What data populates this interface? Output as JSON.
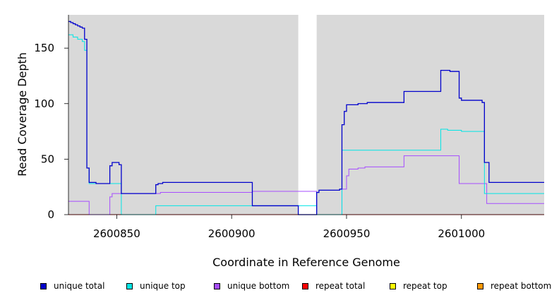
{
  "chart_data": {
    "type": "line",
    "xlabel": "Coordinate in Reference Genome",
    "ylabel": "Read Coverage Depth",
    "xlim": [
      2600829,
      2601036
    ],
    "ylim": [
      0,
      180
    ],
    "x_ticks": [
      2600850,
      2600900,
      2600950,
      2601000
    ],
    "y_ticks": [
      0,
      50,
      100,
      150
    ],
    "background_color": "#d9d9d9",
    "gap_region": [
      2600929,
      2600937
    ],
    "legend_position": "bottom",
    "series": [
      {
        "name": "unique total",
        "color": "#0000cc",
        "x": [
          2600829,
          2600830,
          2600831,
          2600832,
          2600833,
          2600834,
          2600835,
          2600836,
          2600837,
          2600838,
          2600839,
          2600841,
          2600847,
          2600848,
          2600851,
          2600852,
          2600867,
          2600868,
          2600870,
          2600909,
          2600929,
          2600937,
          2600938,
          2600947,
          2600948,
          2600949,
          2600950,
          2600955,
          2600959,
          2600975,
          2600991,
          2600995,
          2600999,
          2601000,
          2601009,
          2601010,
          2601012,
          2601036
        ],
        "y": [
          174,
          173,
          172,
          171,
          170,
          169,
          168,
          158,
          42,
          29,
          29,
          28,
          44,
          47,
          45,
          19,
          27,
          28,
          29,
          8,
          0,
          20,
          22,
          23,
          81,
          93,
          99,
          100,
          101,
          111,
          130,
          129,
          105,
          103,
          101,
          47,
          29,
          29
        ]
      },
      {
        "name": "unique top",
        "color": "#00e5e5",
        "x": [
          2600829,
          2600831,
          2600833,
          2600835,
          2600836,
          2600837,
          2600838,
          2600851,
          2600852,
          2600867,
          2600909,
          2600929,
          2600937,
          2600947,
          2600948,
          2600949,
          2600990,
          2600991,
          2600994,
          2601000,
          2601009,
          2601010,
          2601036
        ],
        "y": [
          162,
          160,
          158,
          156,
          148,
          42,
          28,
          28,
          0,
          8,
          8,
          8,
          0,
          0,
          58,
          58,
          58,
          77,
          76,
          75,
          75,
          19,
          19
        ]
      },
      {
        "name": "unique bottom",
        "color": "#a64dff",
        "x": [
          2600829,
          2600838,
          2600847,
          2600848,
          2600867,
          2600869,
          2600909,
          2600937,
          2600948,
          2600950,
          2600951,
          2600955,
          2600958,
          2600975,
          2600999,
          2601011,
          2601036
        ],
        "y": [
          12,
          0,
          16,
          19,
          19,
          20,
          21,
          0,
          23,
          35,
          41,
          42,
          43,
          53,
          28,
          10,
          10
        ]
      },
      {
        "name": "repeat total",
        "color": "#ff0000",
        "x": [
          2600829,
          2601036
        ],
        "y": [
          0,
          0
        ]
      },
      {
        "name": "repeat top",
        "color": "#ffff00",
        "x": [
          2600829,
          2601036
        ],
        "y": [
          0,
          0
        ]
      },
      {
        "name": "repeat bottom",
        "color": "#ff9900",
        "x": [
          2600829,
          2601036
        ],
        "y": [
          0,
          0
        ]
      }
    ]
  }
}
